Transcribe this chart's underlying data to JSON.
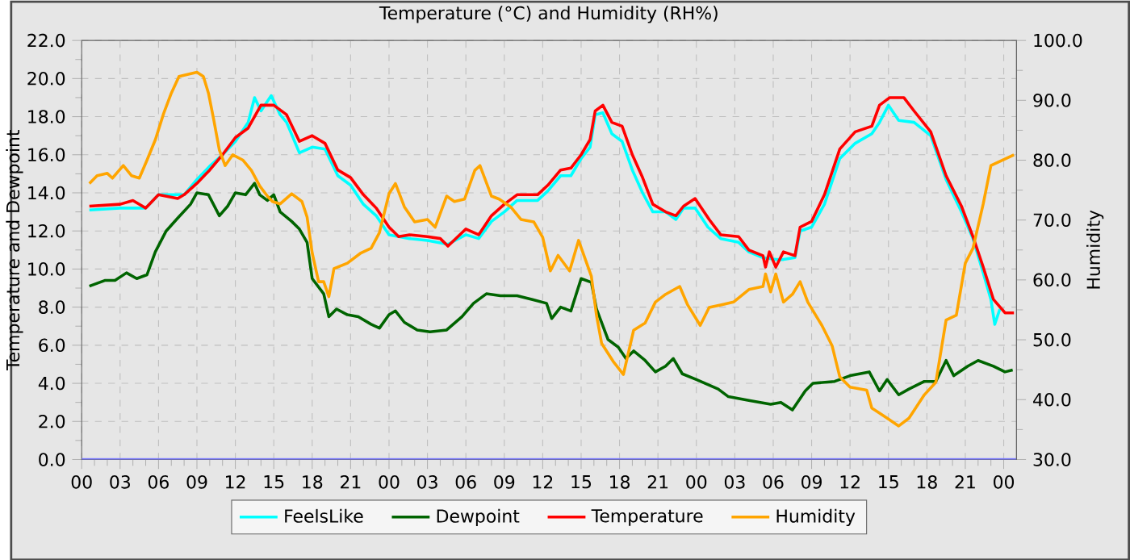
{
  "chart_data": {
    "type": "line",
    "title": "Temperature (°C) and Humidity (RH%)",
    "ylabel": "Temperature and Dewpoint",
    "y2label": "Humidity",
    "xlim": [
      0,
      73
    ],
    "ylim": [
      0,
      22
    ],
    "y2lim": [
      30,
      100
    ],
    "xticks": [
      {
        "value": 0,
        "label": "00"
      },
      {
        "value": 3,
        "label": "03"
      },
      {
        "value": 6,
        "label": "06"
      },
      {
        "value": 9,
        "label": "09"
      },
      {
        "value": 12,
        "label": "12"
      },
      {
        "value": 15,
        "label": "15"
      },
      {
        "value": 18,
        "label": "18"
      },
      {
        "value": 21,
        "label": "21"
      },
      {
        "value": 24,
        "label": "00"
      },
      {
        "value": 27,
        "label": "03"
      },
      {
        "value": 30,
        "label": "06"
      },
      {
        "value": 33,
        "label": "09"
      },
      {
        "value": 36,
        "label": "12"
      },
      {
        "value": 39,
        "label": "15"
      },
      {
        "value": 42,
        "label": "18"
      },
      {
        "value": 45,
        "label": "21"
      },
      {
        "value": 48,
        "label": "00"
      },
      {
        "value": 51,
        "label": "03"
      },
      {
        "value": 54,
        "label": "06"
      },
      {
        "value": 57,
        "label": "09"
      },
      {
        "value": 60,
        "label": "12"
      },
      {
        "value": 63,
        "label": "15"
      },
      {
        "value": 66,
        "label": "18"
      },
      {
        "value": 69,
        "label": "21"
      },
      {
        "value": 72,
        "label": "00"
      }
    ],
    "yticks": [
      {
        "value": 0,
        "label": "0.0"
      },
      {
        "value": 2,
        "label": "2.0"
      },
      {
        "value": 4,
        "label": "4.0"
      },
      {
        "value": 6,
        "label": "6.0"
      },
      {
        "value": 8,
        "label": "8.0"
      },
      {
        "value": 10,
        "label": "10.0"
      },
      {
        "value": 12,
        "label": "12.0"
      },
      {
        "value": 14,
        "label": "14.0"
      },
      {
        "value": 16,
        "label": "16.0"
      },
      {
        "value": 18,
        "label": "18.0"
      },
      {
        "value": 20,
        "label": "20.0"
      },
      {
        "value": 22,
        "label": "22.0"
      }
    ],
    "y2ticks": [
      {
        "value": 30,
        "label": "30.0"
      },
      {
        "value": 40,
        "label": "40.0"
      },
      {
        "value": 50,
        "label": "50.0"
      },
      {
        "value": 60,
        "label": "60.0"
      },
      {
        "value": 70,
        "label": "70.0"
      },
      {
        "value": 80,
        "label": "80.0"
      },
      {
        "value": 90,
        "label": "90.0"
      },
      {
        "value": 100,
        "label": "100.0"
      }
    ],
    "grid": true,
    "legend": "bottom",
    "marker": "none",
    "line_style": "solid",
    "series": [
      {
        "name": "FeelsLike",
        "color": "#00ffff",
        "x": [
          0.6,
          3,
          5,
          6,
          8,
          9,
          10,
          11,
          12,
          13,
          13.5,
          14,
          14.8,
          15.5,
          16,
          17,
          18,
          19,
          20,
          21,
          22,
          23,
          24,
          25.6,
          27,
          28.6,
          30,
          31,
          32,
          33,
          34,
          35.6,
          36.4,
          37.4,
          38.2,
          39,
          39.7,
          40.1,
          40.7,
          41.4,
          42.2,
          43,
          43.8,
          44.6,
          45.6,
          46.4,
          47,
          47.9,
          48.9,
          49.9,
          51.3,
          52.1,
          53.2,
          54.2,
          54.8,
          55.7,
          56.1,
          57,
          58,
          59.2,
          60.4,
          61.7,
          62.3,
          63,
          63.8,
          65,
          66.3,
          67.5,
          68.7,
          69.6,
          70.4,
          71,
          71.3,
          71.7
        ],
        "values": [
          13.1,
          13.2,
          13.2,
          13.9,
          13.9,
          14.7,
          15.4,
          16.0,
          16.7,
          17.7,
          19.0,
          18.3,
          19.1,
          18.1,
          17.7,
          16.1,
          16.4,
          16.3,
          14.9,
          14.4,
          13.4,
          12.8,
          11.8,
          11.6,
          11.5,
          11.3,
          11.8,
          11.6,
          12.5,
          13.0,
          13.6,
          13.6,
          14.1,
          14.9,
          14.9,
          15.8,
          16.4,
          18.1,
          18.2,
          17.1,
          16.7,
          15.2,
          14.0,
          13.0,
          13.0,
          12.6,
          13.2,
          13.2,
          12.2,
          11.6,
          11.4,
          10.9,
          10.6,
          10.5,
          10.5,
          10.6,
          12.0,
          12.2,
          13.4,
          15.8,
          16.6,
          17.1,
          17.7,
          18.6,
          17.8,
          17.7,
          17.0,
          14.7,
          13.0,
          11.6,
          9.8,
          8.4,
          7.1,
          7.9
        ]
      },
      {
        "name": "Dewpoint",
        "color": "#006400",
        "x": [
          0.6,
          1.8,
          2.6,
          3.5,
          4.3,
          5.1,
          5.75,
          6.6,
          7.4,
          8.5,
          9,
          9.9,
          10.75,
          11.4,
          12,
          12.8,
          13.5,
          13.9,
          14.5,
          15,
          15.5,
          16.4,
          17,
          17.6,
          18,
          18.9,
          19.3,
          19.9,
          20.75,
          21.6,
          22.6,
          23.25,
          24,
          24.5,
          25.2,
          26.2,
          27.2,
          28.5,
          29.7,
          30.6,
          31.6,
          32.7,
          34,
          35.2,
          36.3,
          36.7,
          37.4,
          38.2,
          39,
          39.8,
          40.2,
          41.1,
          41.9,
          42.5,
          43.1,
          44,
          44.8,
          45.6,
          46.2,
          46.9,
          48,
          49.7,
          50.5,
          52.1,
          53.8,
          54.6,
          55.5,
          56.5,
          57.1,
          58.8,
          60,
          61.5,
          62.3,
          62.9,
          63.8,
          64.6,
          65.8,
          66.7,
          67.5,
          68.1,
          69.2,
          70,
          71.2,
          72.1,
          72.7
        ],
        "values": [
          9.1,
          9.4,
          9.4,
          9.8,
          9.5,
          9.7,
          10.9,
          12.0,
          12.6,
          13.4,
          14.0,
          13.9,
          12.8,
          13.3,
          14.0,
          13.9,
          14.5,
          13.9,
          13.6,
          13.9,
          13.0,
          12.5,
          12.1,
          11.4,
          9.5,
          8.7,
          7.5,
          7.9,
          7.6,
          7.5,
          7.1,
          6.9,
          7.6,
          7.8,
          7.2,
          6.8,
          6.7,
          6.8,
          7.5,
          8.2,
          8.7,
          8.6,
          8.6,
          8.4,
          8.2,
          7.4,
          8.0,
          7.8,
          9.5,
          9.3,
          7.9,
          6.3,
          5.9,
          5.3,
          5.7,
          5.2,
          4.6,
          4.9,
          5.3,
          4.5,
          4.2,
          3.7,
          3.3,
          3.1,
          2.9,
          3.0,
          2.6,
          3.6,
          4.0,
          4.1,
          4.4,
          4.6,
          3.6,
          4.2,
          3.4,
          3.7,
          4.1,
          4.1,
          5.2,
          4.4,
          4.9,
          5.2,
          4.9,
          4.6,
          4.7
        ]
      },
      {
        "name": "Temperature",
        "color": "#ff0000",
        "x": [
          0.6,
          3,
          4,
          5,
          6,
          7.5,
          8,
          9,
          10,
          11,
          12,
          13,
          14,
          15,
          16,
          17,
          18,
          19,
          20,
          21,
          22,
          23,
          24,
          24.75,
          25.6,
          27,
          28,
          28.6,
          30,
          31,
          32,
          33,
          34,
          35.6,
          36.4,
          37.4,
          38.2,
          39,
          39.7,
          40.1,
          40.7,
          41.4,
          42.2,
          43,
          43.8,
          44.6,
          45.6,
          46.4,
          47,
          47.9,
          49,
          49.9,
          51.3,
          52.1,
          53.2,
          53.4,
          53.7,
          54.2,
          54.8,
          55.7,
          56.1,
          57,
          58,
          59.2,
          60.4,
          61.7,
          62.3,
          63.1,
          64.2,
          65,
          66.3,
          67.5,
          68.7,
          69.6,
          70.4,
          71.2,
          72.1,
          72.8
        ],
        "values": [
          13.3,
          13.4,
          13.6,
          13.2,
          13.9,
          13.7,
          13.9,
          14.5,
          15.2,
          16.0,
          16.9,
          17.4,
          18.6,
          18.6,
          18.1,
          16.7,
          17.0,
          16.6,
          15.2,
          14.8,
          13.9,
          13.2,
          12.2,
          11.7,
          11.8,
          11.7,
          11.6,
          11.2,
          12.1,
          11.8,
          12.8,
          13.4,
          13.9,
          13.9,
          14.4,
          15.2,
          15.3,
          16.0,
          16.8,
          18.3,
          18.6,
          17.7,
          17.5,
          16.0,
          14.8,
          13.4,
          13.0,
          12.8,
          13.3,
          13.7,
          12.6,
          11.8,
          11.7,
          11.0,
          10.7,
          10.1,
          10.9,
          10.1,
          10.9,
          10.7,
          12.2,
          12.5,
          13.9,
          16.3,
          17.2,
          17.5,
          18.6,
          19.0,
          19.0,
          18.3,
          17.2,
          14.9,
          13.3,
          11.7,
          10.1,
          8.4,
          7.7,
          7.7
        ]
      },
      {
        "name": "Humidity",
        "color": "#ffa500",
        "axis": "y2",
        "x": [
          0.6,
          1.2,
          2,
          2.4,
          3.25,
          3.9,
          4.5,
          5.1,
          5.75,
          6.4,
          7,
          7.6,
          9,
          9.5,
          9.9,
          10.3,
          10.75,
          11.2,
          11.8,
          12.6,
          13.25,
          13.9,
          14.5,
          14.9,
          15.5,
          16.4,
          17.2,
          17.6,
          18,
          18.5,
          18.9,
          19.3,
          19.7,
          20.75,
          21.8,
          22.6,
          23.25,
          24,
          24.5,
          25.2,
          26,
          27,
          27.6,
          28.5,
          29.1,
          29.9,
          30.7,
          31.1,
          32,
          32.6,
          33.5,
          34.3,
          35.3,
          36,
          36.6,
          37.2,
          38.1,
          38.8,
          39.3,
          39.8,
          40.2,
          40.6,
          41.5,
          42.3,
          43.1,
          44,
          44.8,
          45.6,
          46.7,
          47.3,
          48.3,
          49,
          50.1,
          50.9,
          52.1,
          53.2,
          53.4,
          53.8,
          54.2,
          54.8,
          55.5,
          56.1,
          56.7,
          57.8,
          58.6,
          59.2,
          60,
          61.3,
          61.7,
          62.9,
          63.8,
          64.6,
          65.8,
          66.7,
          67.5,
          68.3,
          69,
          69.6,
          70.4,
          71,
          71.9,
          72.8
        ],
        "values": [
          76.1,
          77.4,
          77.8,
          77.0,
          79.1,
          77.4,
          77.0,
          80.0,
          83.4,
          87.8,
          91.2,
          94.0,
          94.7,
          94.0,
          91.2,
          86.9,
          81.7,
          79.1,
          80.9,
          80.0,
          78.3,
          75.7,
          74.0,
          73.1,
          72.7,
          74.4,
          73.1,
          70.5,
          64.5,
          59.7,
          59.7,
          57.2,
          61.9,
          62.8,
          64.5,
          65.3,
          67.9,
          74.4,
          76.1,
          72.2,
          69.7,
          70.1,
          68.8,
          74.0,
          73.1,
          73.5,
          78.3,
          79.1,
          74.0,
          73.5,
          72.2,
          70.1,
          69.7,
          67.1,
          61.5,
          64.1,
          61.5,
          66.6,
          63.6,
          60.6,
          54.1,
          49.4,
          46.4,
          44.2,
          51.6,
          52.8,
          56.3,
          57.6,
          58.9,
          55.9,
          52.4,
          55.4,
          55.9,
          56.3,
          58.4,
          58.9,
          61.0,
          58.0,
          61.0,
          56.3,
          57.6,
          59.7,
          56.3,
          52.4,
          49.0,
          43.8,
          42.1,
          41.6,
          38.6,
          36.9,
          35.6,
          36.9,
          40.8,
          42.9,
          53.3,
          54.1,
          62.8,
          65.3,
          72.7,
          79.1,
          80.0,
          80.9
        ]
      },
      {
        "color": "#7878ff",
        "x": [
          0,
          73
        ],
        "values": [
          0,
          0
        ]
      }
    ]
  }
}
